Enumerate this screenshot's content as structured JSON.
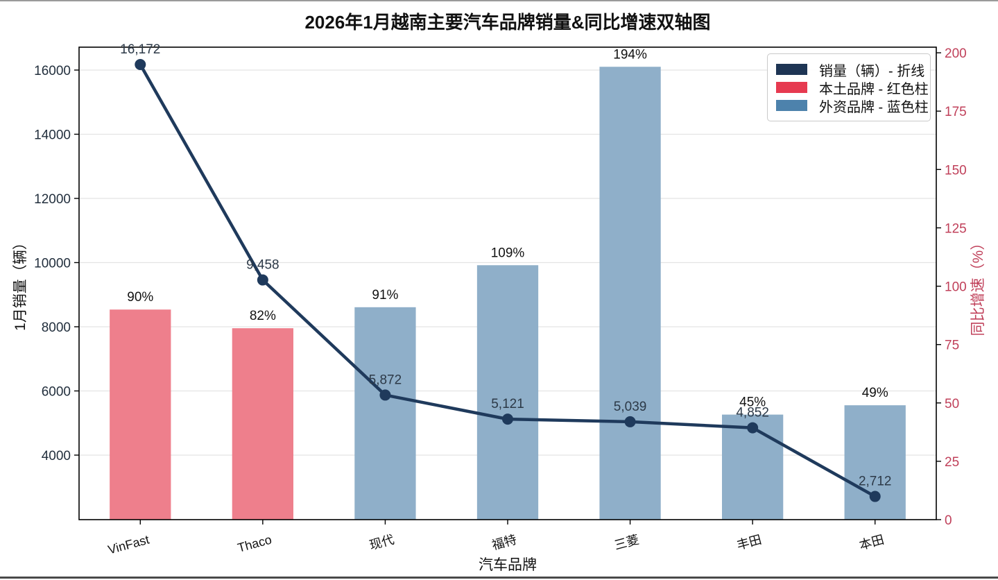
{
  "chart_data": {
    "type": "bar+line dual-axis",
    "title": "2026年1月越南主要汽车品牌销量&同比增速双轴图",
    "categories": [
      "VinFast",
      "Thaco",
      "现代",
      "福特",
      "三菱",
      "丰田",
      "本田"
    ],
    "x_axis": {
      "label": "汽车品牌"
    },
    "left_axis": {
      "label": "1月销量（辆）",
      "ticks": [
        4000,
        6000,
        8000,
        10000,
        12000,
        14000,
        16000
      ],
      "min": 1989,
      "max": 16713,
      "tick_color": "#222f3d"
    },
    "right_axis": {
      "label": "同比增速（%）",
      "ticks": [
        0,
        25,
        50,
        75,
        100,
        125,
        150,
        175,
        200
      ],
      "min": 0,
      "max": 202.4,
      "tick_color": "#c0405a"
    },
    "line_series": {
      "name": "销量（辆）- 折线",
      "axis": "left",
      "values": [
        16172,
        9458,
        5872,
        5121,
        5039,
        4852,
        2712
      ],
      "labels": [
        "16,172",
        "9,458",
        "5,872",
        "5,121",
        "5,039",
        "4,852",
        "2,712"
      ],
      "color": "#1f3a5c",
      "label_color": "#2c3947"
    },
    "bar_series": {
      "name": "同比增速",
      "axis": "right",
      "values": [
        90,
        82,
        91,
        109,
        194,
        45,
        49
      ],
      "labels": [
        "90%",
        "82%",
        "91%",
        "109%",
        "194%",
        "45%",
        "49%"
      ],
      "groups": [
        "local",
        "local",
        "foreign",
        "foreign",
        "foreign",
        "foreign",
        "foreign"
      ],
      "group_colors": {
        "local": "#ee7f8c",
        "foreign": "#8fafc9"
      },
      "label_color": "#111111"
    },
    "grid": "on",
    "grid_color": "#e4e4e4",
    "spine_color": "#000000"
  },
  "legend": {
    "position": "upper right",
    "items": [
      {
        "label": "销量（辆）- 折线",
        "color": "#1e3554"
      },
      {
        "label": "本土品牌 - 红色柱",
        "color": "#e63a50"
      },
      {
        "label": "外资品牌 - 蓝色柱",
        "color": "#4d82ac"
      }
    ]
  }
}
